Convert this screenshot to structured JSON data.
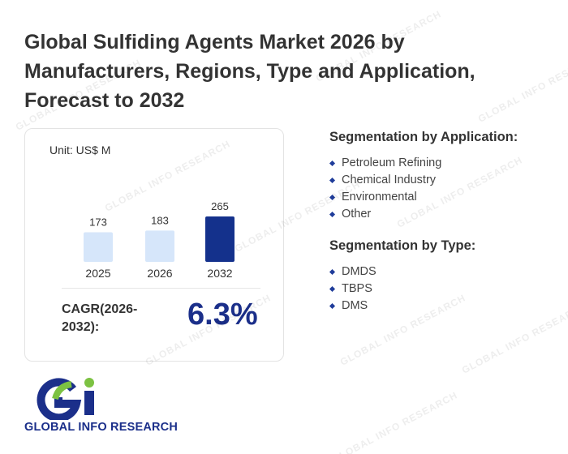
{
  "header": {
    "title": "Global Sulfiding Agents Market 2026 by Manufacturers, Regions, Type and Application, Forecast to 2032"
  },
  "chart": {
    "unit": "Unit: US$ M",
    "cagr_label": "CAGR(2026-2032):",
    "cagr_value": "6.3%"
  },
  "chart_data": {
    "type": "bar",
    "categories": [
      "2025",
      "2026",
      "2032"
    ],
    "values": [
      173,
      183,
      265
    ],
    "colors": [
      "#d6e6fa",
      "#d6e6fa",
      "#14318c"
    ],
    "unit": "US$ M",
    "grid": false,
    "legend": "none"
  },
  "segmentation": {
    "application": {
      "title": "Segmentation by Application:",
      "items": [
        "Petroleum Refining",
        "Chemical Industry",
        "Environmental",
        "Other"
      ]
    },
    "type": {
      "title": "Segmentation by Type:",
      "items": [
        "DMDS",
        "TBPS",
        "DMS"
      ]
    }
  },
  "brand": {
    "logo_text": "GLOBAL INFO RESEARCH",
    "logo_colors": {
      "blue": "#1b2f8a",
      "green": "#7cc242"
    },
    "watermark": "GLOBAL INFO RESEARCH"
  }
}
